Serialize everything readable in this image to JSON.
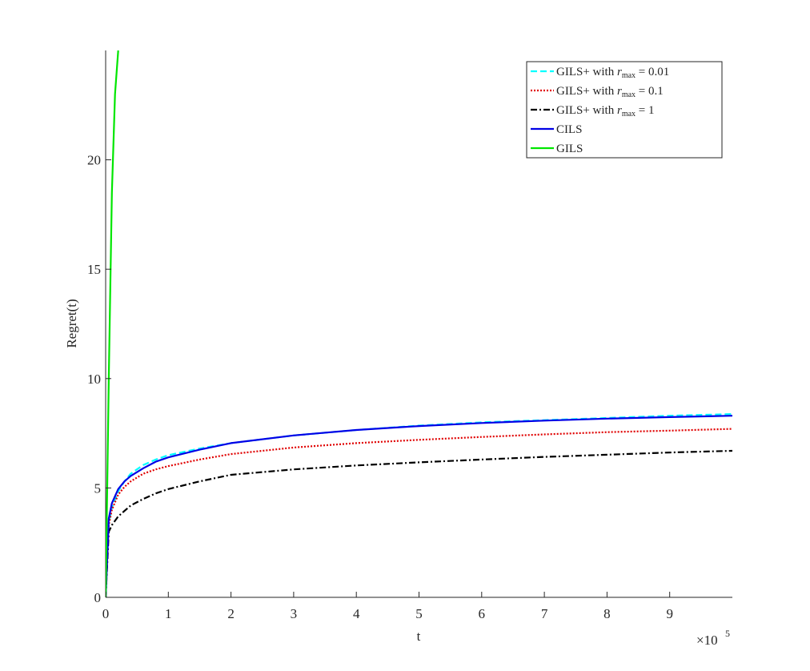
{
  "chart_data": {
    "type": "line",
    "xlabel": "t",
    "ylabel": "Regret(t)",
    "x_multiplier_label": "×10",
    "x_multiplier_exponent": "5",
    "xlim": [
      0,
      1000000
    ],
    "ylim": [
      0,
      25
    ],
    "x_ticks": [
      0,
      100000,
      200000,
      300000,
      400000,
      500000,
      600000,
      700000,
      800000,
      900000
    ],
    "x_tick_labels": [
      "0",
      "1",
      "2",
      "3",
      "4",
      "5",
      "6",
      "7",
      "8",
      "9"
    ],
    "y_ticks": [
      0,
      5,
      10,
      15,
      20
    ],
    "y_tick_labels": [
      "0",
      "5",
      "10",
      "15",
      "20"
    ],
    "grid": false,
    "legend_position": "top-right",
    "series": [
      {
        "name": "GILS+ with r_max = 0.01",
        "legend": {
          "prefix": "GILS+ with ",
          "var": "r",
          "sub": "max",
          "suffix": " = 0.01"
        },
        "color": "#00ffff",
        "dash": "dashed",
        "x": [
          0,
          5000,
          10000,
          20000,
          30000,
          40000,
          60000,
          80000,
          100000,
          150000,
          200000,
          300000,
          400000,
          500000,
          600000,
          700000,
          800000,
          900000,
          1000000
        ],
        "y": [
          0,
          3.4,
          4.1,
          4.85,
          5.3,
          5.65,
          6.05,
          6.3,
          6.5,
          6.8,
          7.05,
          7.4,
          7.65,
          7.85,
          8.0,
          8.1,
          8.2,
          8.3,
          8.38
        ]
      },
      {
        "name": "GILS+ with r_max = 0.1",
        "legend": {
          "prefix": "GILS+ with ",
          "var": "r",
          "sub": "max",
          "suffix": " = 0.1"
        },
        "color": "#e00000",
        "dash": "dotted",
        "x": [
          0,
          5000,
          10000,
          20000,
          30000,
          40000,
          60000,
          80000,
          100000,
          150000,
          200000,
          300000,
          400000,
          500000,
          600000,
          700000,
          800000,
          900000,
          1000000
        ],
        "y": [
          0,
          3.3,
          4.0,
          4.7,
          5.05,
          5.3,
          5.65,
          5.85,
          6.0,
          6.3,
          6.55,
          6.85,
          7.05,
          7.2,
          7.33,
          7.45,
          7.55,
          7.62,
          7.7
        ]
      },
      {
        "name": "GILS+ with r_max = 1",
        "legend": {
          "prefix": "GILS+ with ",
          "var": "r",
          "sub": "max",
          "suffix": " = 1"
        },
        "color": "#000000",
        "dash": "dashdot",
        "x": [
          0,
          5000,
          10000,
          20000,
          30000,
          40000,
          60000,
          80000,
          100000,
          150000,
          200000,
          300000,
          400000,
          500000,
          600000,
          700000,
          800000,
          900000,
          1000000
        ],
        "y": [
          0,
          3.0,
          3.3,
          3.7,
          3.95,
          4.2,
          4.5,
          4.75,
          4.95,
          5.3,
          5.6,
          5.85,
          6.03,
          6.17,
          6.3,
          6.42,
          6.52,
          6.62,
          6.7
        ]
      },
      {
        "name": "CILS",
        "legend": {
          "prefix": "CILS",
          "var": "",
          "sub": "",
          "suffix": ""
        },
        "color": "#0000e6",
        "dash": "solid",
        "x": [
          0,
          5000,
          10000,
          20000,
          30000,
          40000,
          60000,
          80000,
          100000,
          150000,
          200000,
          300000,
          400000,
          500000,
          600000,
          700000,
          800000,
          900000,
          1000000
        ],
        "y": [
          0,
          3.6,
          4.3,
          4.95,
          5.3,
          5.55,
          5.9,
          6.2,
          6.4,
          6.75,
          7.05,
          7.4,
          7.65,
          7.83,
          7.97,
          8.08,
          8.17,
          8.24,
          8.3
        ]
      },
      {
        "name": "GILS",
        "legend": {
          "prefix": "GILS",
          "var": "",
          "sub": "",
          "suffix": ""
        },
        "color": "#00e600",
        "dash": "solid",
        "x": [
          0,
          5000,
          10000,
          15000,
          20000
        ],
        "y": [
          0,
          10.0,
          18.5,
          23.0,
          25.0
        ]
      }
    ]
  }
}
